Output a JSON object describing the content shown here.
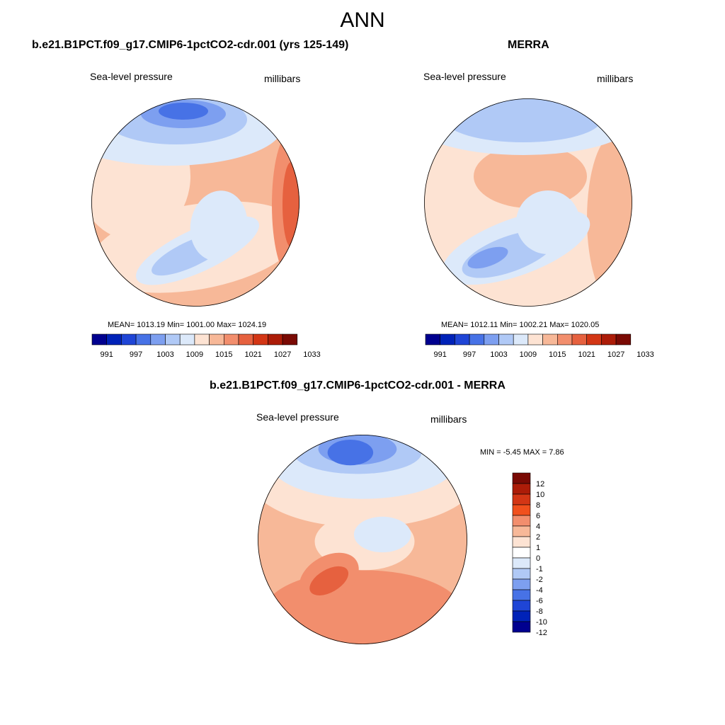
{
  "page": {
    "title": "ANN",
    "panels": [
      {
        "title": "b.e21.B1PCT.f09_g17.CMIP6-1pctCO2-cdr.001 (yrs 125-149)",
        "variable": "Sea-level pressure",
        "units": "millibars",
        "stats": "MEAN= 1013.19  Min= 1001.00  Max= 1024.19",
        "colorbar": {
          "colors": [
            "#00008f",
            "#0022b8",
            "#1f45d6",
            "#4772e6",
            "#7d9ff0",
            "#b0c9f6",
            "#dce9fa",
            "#fde3d3",
            "#f7b898",
            "#f28e6d",
            "#e6613f",
            "#d33615",
            "#ac1c08",
            "#7a0a04"
          ],
          "labels": [
            "991",
            "997",
            "1003",
            "1009",
            "1015",
            "1021",
            "1027",
            "1033"
          ]
        }
      },
      {
        "title": "MERRA",
        "variable": "Sea-level pressure",
        "units": "millibars",
        "stats": "MEAN= 1012.11  Min= 1002.21  Max= 1020.05",
        "colorbar": {
          "colors": [
            "#00008f",
            "#0022b8",
            "#1f45d6",
            "#4772e6",
            "#7d9ff0",
            "#b0c9f6",
            "#dce9fa",
            "#fde3d3",
            "#f7b898",
            "#f28e6d",
            "#e6613f",
            "#d33615",
            "#ac1c08",
            "#7a0a04"
          ],
          "labels": [
            "991",
            "997",
            "1003",
            "1009",
            "1015",
            "1021",
            "1027",
            "1033"
          ]
        }
      },
      {
        "title": "b.e21.B1PCT.f09_g17.CMIP6-1pctCO2-cdr.001 - MERRA",
        "variable": "Sea-level pressure",
        "units": "millibars",
        "stats": "MIN =  -5.45 MAX =   7.86",
        "colorbar": {
          "colors": [
            "#7a0a04",
            "#ac1c08",
            "#d33615",
            "#f0501d",
            "#f28e6d",
            "#f7b898",
            "#fde3d3",
            "#ffffff",
            "#dce9fa",
            "#b0c9f6",
            "#7d9ff0",
            "#4772e6",
            "#1f45d6",
            "#0022b8",
            "#00008f"
          ],
          "labels": [
            "12",
            "10",
            "8",
            "6",
            "4",
            "2",
            "1",
            "0",
            "-1",
            "-2",
            "-4",
            "-6",
            "-8",
            "-10",
            "-12"
          ]
        }
      }
    ]
  }
}
